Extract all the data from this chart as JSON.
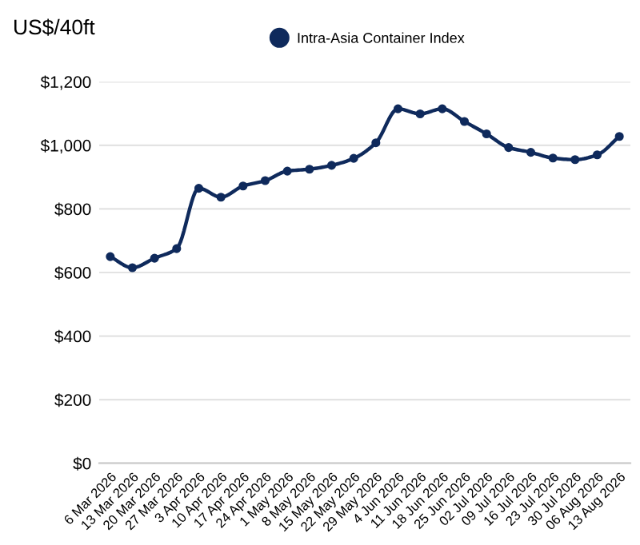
{
  "chart_data": {
    "type": "line",
    "ylabel": "US$/40ft",
    "categories": [
      "6 Mar 2026",
      "13 Mar 2026",
      "20 Mar 2026",
      "27 Mar 2026",
      "3 Apr 2026",
      "10 Apr 2026",
      "17 Apr 2026",
      "24 Apr 2026",
      "1 May 2026",
      "8 May 2026",
      "15 May 2026",
      "22 May 2026",
      "29 May 2026",
      "4 Jun 2026",
      "11 Jun 2026",
      "18 Jun 2026",
      "25 Jun 2026",
      "02 Jul 2026",
      "09 Jul 2026",
      "16 Jul 2026",
      "23 Jul 2026",
      "30 Jul 2026",
      "06 Aug 2026",
      "13 Aug 2026"
    ],
    "series": [
      {
        "name": "Intra-Asia Container Index",
        "color": "#0f2a5c",
        "values": [
          650,
          615,
          645,
          675,
          865,
          837,
          872,
          889,
          919,
          925,
          937,
          959,
          1008,
          1115,
          1099,
          1115,
          1075,
          1036,
          993,
          978,
          960,
          955,
          970,
          1028
        ]
      }
    ],
    "ylim": [
      0,
      1200
    ],
    "yticks": [
      {
        "value": 0,
        "label": "$0"
      },
      {
        "value": 200,
        "label": "$200"
      },
      {
        "value": 400,
        "label": "$400"
      },
      {
        "value": 600,
        "label": "$600"
      },
      {
        "value": 800,
        "label": "$800"
      },
      {
        "value": 1000,
        "label": "$1,000"
      },
      {
        "value": 1200,
        "label": "$1,200"
      }
    ],
    "grid": "y",
    "legend": "top",
    "marker": "circle",
    "line_style": "solid"
  }
}
